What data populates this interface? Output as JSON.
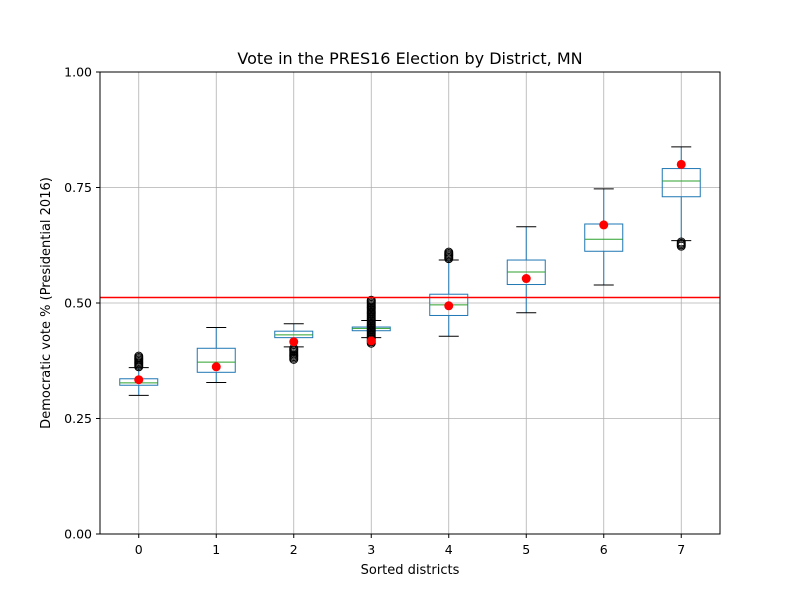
{
  "chart_data": {
    "type": "box",
    "title": "Vote in the PRES16 Election by District, MN",
    "xlabel": "Sorted districts",
    "ylabel": "Democratic vote % (Presidential 2016)",
    "ylim": [
      0,
      1
    ],
    "yticks": [
      "0.00",
      "0.25",
      "0.50",
      "0.75",
      "1.00"
    ],
    "categories": [
      "0",
      "1",
      "2",
      "3",
      "4",
      "5",
      "6",
      "7"
    ],
    "grid": true,
    "reference_line": {
      "y": 0.512,
      "color": "#ff0000"
    },
    "boxes": [
      {
        "whisker_low": 0.3,
        "q1": 0.322,
        "median": 0.327,
        "q3": 0.336,
        "whisker_high": 0.36,
        "flier_range": [
          0.362,
          0.385
        ],
        "dot": 0.334
      },
      {
        "whisker_low": 0.328,
        "q1": 0.35,
        "median": 0.372,
        "q3": 0.402,
        "whisker_high": 0.447,
        "flier_range": null,
        "dot": 0.362
      },
      {
        "whisker_low": 0.405,
        "q1": 0.425,
        "median": 0.431,
        "q3": 0.439,
        "whisker_high": 0.455,
        "flier_range": [
          0.378,
          0.402
        ],
        "dot": 0.416
      },
      {
        "whisker_low": 0.425,
        "q1": 0.44,
        "median": 0.445,
        "q3": 0.448,
        "whisker_high": 0.462,
        "flier_range": [
          0.413,
          0.506
        ],
        "dot": 0.418
      },
      {
        "whisker_low": 0.428,
        "q1": 0.473,
        "median": 0.496,
        "q3": 0.519,
        "whisker_high": 0.593,
        "flier_range": [
          0.596,
          0.61
        ],
        "dot": 0.494
      },
      {
        "whisker_low": 0.479,
        "q1": 0.54,
        "median": 0.567,
        "q3": 0.593,
        "whisker_high": 0.665,
        "flier_range": null,
        "dot": 0.553
      },
      {
        "whisker_low": 0.539,
        "q1": 0.612,
        "median": 0.638,
        "q3": 0.671,
        "whisker_high": 0.747,
        "flier_range": null,
        "dot": 0.669
      },
      {
        "whisker_low": 0.635,
        "q1": 0.73,
        "median": 0.764,
        "q3": 0.791,
        "whisker_high": 0.838,
        "flier_range": [
          0.623,
          0.632
        ],
        "dot": 0.8
      }
    ],
    "colors": {
      "box": "#1f77b4",
      "median": "#2ca02c",
      "whisker_cap": "#000000",
      "flier": "#000000",
      "dot": "#ff0000",
      "grid": "#b0b0b0"
    }
  }
}
